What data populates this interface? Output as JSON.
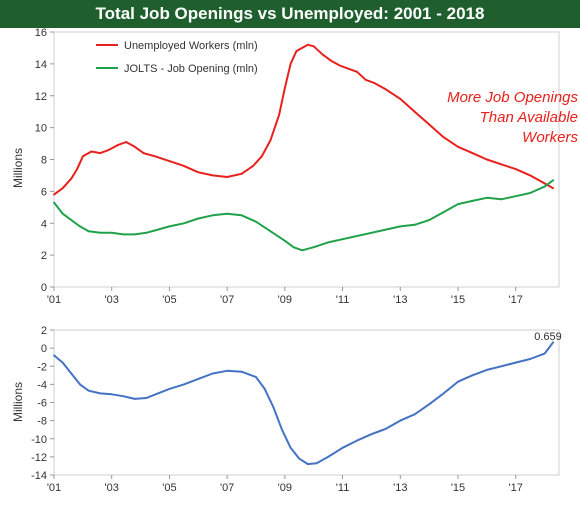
{
  "title": "Total Job Openings vs Unemployed: 2001 - 2018",
  "colors": {
    "title_bg": "#1f5f2e",
    "unemployed": "#e8211d",
    "jolts": "#21a24a",
    "diff": "#4472c4",
    "annotation": "#e8211d"
  },
  "chart_data": [
    {
      "type": "line",
      "ylabel": "Millions",
      "ylim": [
        0,
        16
      ],
      "xlim": [
        2001,
        2018.5
      ],
      "yticks": [
        "0",
        "2",
        "4",
        "6",
        "8",
        "10",
        "12",
        "14",
        "16"
      ],
      "xticks": [
        "'01",
        "'03",
        "'05",
        "'07",
        "'09",
        "'11",
        "'13",
        "'15",
        "'17"
      ],
      "legend_position": "top-left",
      "annotation": [
        "More Job Openings",
        "Than Available",
        "Workers"
      ],
      "series": [
        {
          "name": "Unemployed Workers (mln)",
          "x": [
            2001.0,
            2001.3,
            2001.6,
            2001.8,
            2002.0,
            2002.3,
            2002.6,
            2002.9,
            2003.2,
            2003.5,
            2003.8,
            2004.1,
            2004.5,
            2005.0,
            2005.5,
            2006.0,
            2006.5,
            2007.0,
            2007.5,
            2007.9,
            2008.2,
            2008.5,
            2008.8,
            2009.0,
            2009.2,
            2009.4,
            2009.6,
            2009.8,
            2010.0,
            2010.3,
            2010.6,
            2010.9,
            2011.2,
            2011.5,
            2011.8,
            2012.1,
            2012.5,
            2013.0,
            2013.5,
            2014.0,
            2014.5,
            2015.0,
            2015.5,
            2016.0,
            2016.5,
            2017.0,
            2017.5,
            2018.0,
            2018.3
          ],
          "y": [
            5.8,
            6.2,
            6.8,
            7.4,
            8.2,
            8.5,
            8.4,
            8.6,
            8.9,
            9.1,
            8.8,
            8.4,
            8.2,
            7.9,
            7.6,
            7.2,
            7.0,
            6.9,
            7.1,
            7.6,
            8.2,
            9.2,
            10.8,
            12.5,
            14.0,
            14.8,
            15.0,
            15.2,
            15.1,
            14.6,
            14.2,
            13.9,
            13.7,
            13.5,
            13.0,
            12.8,
            12.4,
            11.8,
            11.0,
            10.2,
            9.4,
            8.8,
            8.4,
            8.0,
            7.7,
            7.4,
            7.0,
            6.5,
            6.2
          ]
        },
        {
          "name": "JOLTS - Job Opening (mln)",
          "x": [
            2001.0,
            2001.3,
            2001.6,
            2001.9,
            2002.2,
            2002.6,
            2003.0,
            2003.4,
            2003.8,
            2004.2,
            2004.6,
            2005.0,
            2005.5,
            2006.0,
            2006.5,
            2007.0,
            2007.5,
            2008.0,
            2008.5,
            2009.0,
            2009.3,
            2009.6,
            2010.0,
            2010.5,
            2011.0,
            2011.5,
            2012.0,
            2012.5,
            2013.0,
            2013.5,
            2014.0,
            2014.5,
            2015.0,
            2015.5,
            2016.0,
            2016.5,
            2017.0,
            2017.5,
            2018.0,
            2018.3
          ],
          "y": [
            5.3,
            4.6,
            4.2,
            3.8,
            3.5,
            3.4,
            3.4,
            3.3,
            3.3,
            3.4,
            3.6,
            3.8,
            4.0,
            4.3,
            4.5,
            4.6,
            4.5,
            4.1,
            3.5,
            2.9,
            2.5,
            2.3,
            2.5,
            2.8,
            3.0,
            3.2,
            3.4,
            3.6,
            3.8,
            3.9,
            4.2,
            4.7,
            5.2,
            5.4,
            5.6,
            5.5,
            5.7,
            5.9,
            6.3,
            6.7
          ]
        }
      ]
    },
    {
      "type": "line",
      "ylabel": "Millions",
      "ylim": [
        -14,
        2
      ],
      "xlim": [
        2001,
        2018.5
      ],
      "yticks": [
        "2",
        "0",
        "-2",
        "-4",
        "-6",
        "-8",
        "-10",
        "-12",
        "-14"
      ],
      "xticks": [
        "'01",
        "'03",
        "'05",
        "'07",
        "'09",
        "'11",
        "'13",
        "'15",
        "'17"
      ],
      "last_value_label": "0.659",
      "series": [
        {
          "name": "",
          "x": [
            2001.0,
            2001.3,
            2001.6,
            2001.9,
            2002.2,
            2002.6,
            2003.0,
            2003.4,
            2003.8,
            2004.2,
            2004.6,
            2005.0,
            2005.5,
            2006.0,
            2006.5,
            2007.0,
            2007.5,
            2008.0,
            2008.3,
            2008.6,
            2008.9,
            2009.2,
            2009.5,
            2009.8,
            2010.1,
            2010.5,
            2011.0,
            2011.5,
            2012.0,
            2012.5,
            2013.0,
            2013.5,
            2014.0,
            2014.5,
            2015.0,
            2015.5,
            2016.0,
            2016.5,
            2017.0,
            2017.5,
            2018.0,
            2018.3
          ],
          "y": [
            -0.8,
            -1.6,
            -2.8,
            -4.0,
            -4.7,
            -5.0,
            -5.1,
            -5.3,
            -5.6,
            -5.5,
            -5.0,
            -4.5,
            -4.0,
            -3.4,
            -2.8,
            -2.5,
            -2.6,
            -3.2,
            -4.5,
            -6.5,
            -9.0,
            -11.0,
            -12.2,
            -12.8,
            -12.7,
            -12.0,
            -11.0,
            -10.2,
            -9.5,
            -8.9,
            -8.0,
            -7.3,
            -6.2,
            -5.0,
            -3.7,
            -3.0,
            -2.4,
            -2.0,
            -1.6,
            -1.2,
            -0.6,
            0.659
          ]
        }
      ]
    }
  ]
}
